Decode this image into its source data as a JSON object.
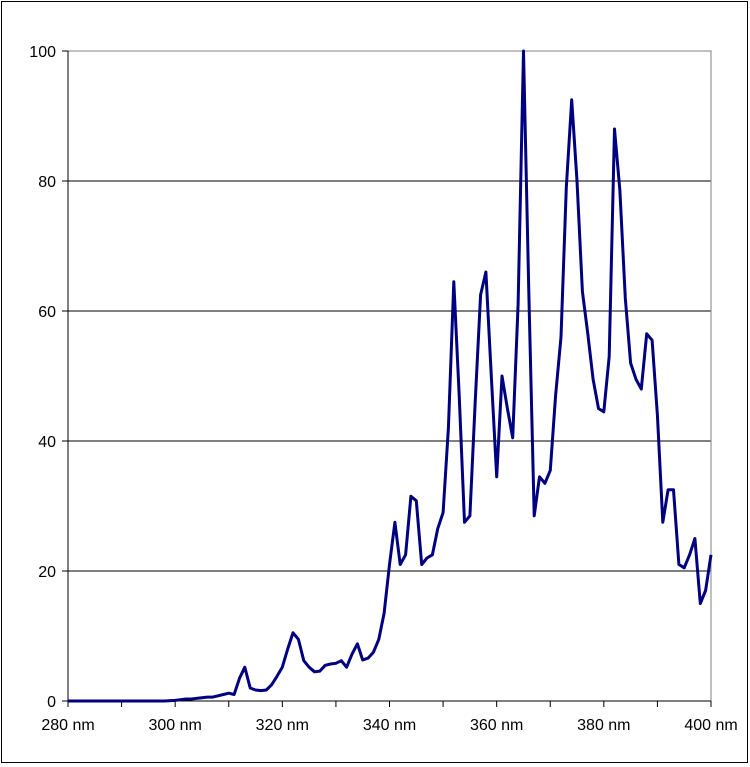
{
  "chart_data": {
    "type": "line",
    "title": "",
    "xlabel": "",
    "ylabel": "",
    "xlim": [
      280,
      400
    ],
    "ylim": [
      0,
      100
    ],
    "x_ticks": [
      {
        "value": 280,
        "label": "280 nm"
      },
      {
        "value": 300,
        "label": "300 nm"
      },
      {
        "value": 320,
        "label": "320 nm"
      },
      {
        "value": 340,
        "label": "340 nm"
      },
      {
        "value": 360,
        "label": "360 nm"
      },
      {
        "value": 380,
        "label": "380 nm"
      },
      {
        "value": 400,
        "label": "400 nm"
      }
    ],
    "y_ticks": [
      {
        "value": 0,
        "label": "0"
      },
      {
        "value": 20,
        "label": "20"
      },
      {
        "value": 40,
        "label": "40"
      },
      {
        "value": 60,
        "label": "60"
      },
      {
        "value": 80,
        "label": "80"
      },
      {
        "value": 100,
        "label": "100"
      }
    ],
    "grid": "horizontal",
    "line_color": "#000080",
    "series": [
      {
        "x": [
          280,
          282,
          284,
          286,
          288,
          290,
          292,
          294,
          296,
          298,
          300,
          301,
          302,
          303,
          304,
          305,
          306,
          307,
          308,
          309,
          310,
          311,
          312,
          313,
          314,
          315,
          316,
          317,
          318,
          319,
          320,
          321,
          322,
          323,
          324,
          325,
          326,
          327,
          328,
          329,
          330,
          331,
          332,
          333,
          334,
          335,
          336,
          337,
          338,
          339,
          340,
          341,
          342,
          343,
          344,
          345,
          346,
          347,
          348,
          349,
          350,
          351,
          352,
          353,
          354,
          355,
          356,
          357,
          358,
          359,
          360,
          361,
          362,
          363,
          364,
          365,
          366,
          367,
          368,
          369,
          370,
          371,
          372,
          373,
          374,
          375,
          376,
          377,
          378,
          379,
          380,
          381,
          382,
          383,
          384,
          385,
          386,
          387,
          388,
          389,
          390,
          391,
          392,
          393,
          394,
          395,
          396,
          397,
          398,
          399,
          400
        ],
        "y": [
          0,
          0,
          0,
          0,
          0,
          0,
          0,
          0,
          0,
          0,
          0.1,
          0.2,
          0.3,
          0.3,
          0.4,
          0.5,
          0.6,
          0.6,
          0.8,
          1,
          1.2,
          1,
          3.5,
          5.2,
          2,
          1.7,
          1.6,
          1.7,
          2.5,
          3.8,
          5.2,
          8,
          10.5,
          9.5,
          6.2,
          5.2,
          4.5,
          4.6,
          5.5,
          5.7,
          5.8,
          6.2,
          5.2,
          7.2,
          8.8,
          6.3,
          6.6,
          7.5,
          9.5,
          13.5,
          21,
          27.5,
          21,
          22.5,
          31.5,
          30.8,
          21,
          22,
          22.5,
          26.5,
          29,
          42,
          64.5,
          47,
          27.5,
          28.5,
          46,
          62.5,
          66,
          50,
          34.5,
          50,
          45,
          40.5,
          61,
          100,
          63,
          28.5,
          34.5,
          33.5,
          35.5,
          47,
          56,
          79,
          92.5,
          80,
          63,
          56.5,
          49.5,
          45,
          44.5,
          53,
          88,
          78.5,
          62,
          52,
          49.5,
          48,
          56.5,
          55.5,
          44,
          27.5,
          32.5,
          32.5,
          21,
          20.5,
          22.5,
          25,
          15,
          17,
          22.5
        ]
      }
    ]
  }
}
